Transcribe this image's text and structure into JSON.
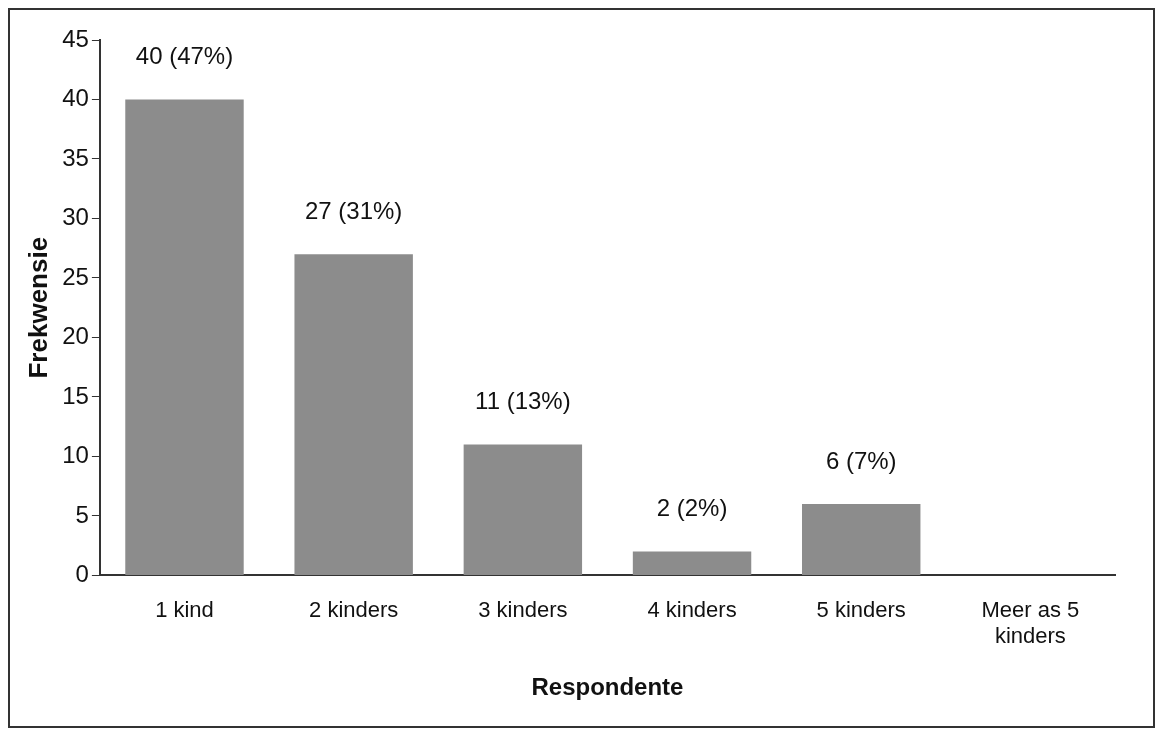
{
  "chart_data": {
    "type": "bar",
    "xlabel": "Respondente",
    "ylabel": "Frekwensie",
    "categories": [
      "1 kind",
      "2 kinders",
      "3 kinders",
      "4 kinders",
      "5 kinders",
      "Meer as 5 kinders"
    ],
    "values": [
      40,
      27,
      11,
      2,
      6,
      null
    ],
    "value_labels": [
      "40 (47%)",
      "27 (31%)",
      "11 (13%)",
      "2 (2%)",
      "6 (7%)",
      null
    ],
    "color": "#8c8c8c",
    "ylim": [
      0,
      45
    ],
    "yticks": [
      0,
      5,
      10,
      15,
      20,
      25,
      30,
      35,
      40,
      45
    ],
    "grid": false,
    "legend": false
  }
}
